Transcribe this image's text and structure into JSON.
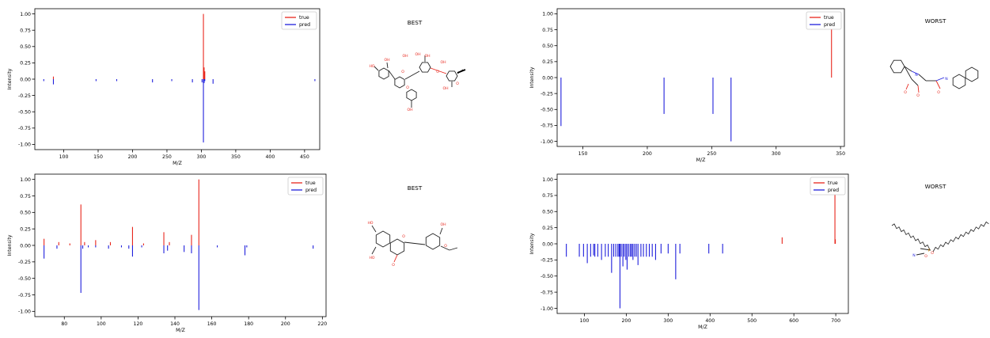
{
  "colors": {
    "true": "#e8261c",
    "pred": "#1f1fdc",
    "axis": "#000000",
    "mol_bond": "#222222",
    "mol_o": "#e8261c",
    "mol_n": "#1f1fdc"
  },
  "chart_data": [
    {
      "type": "bar",
      "subtype": "mirrored-spectrum",
      "title": "",
      "xlabel": "M/Z",
      "ylabel": "Intensity",
      "xlim": [
        58,
        472
      ],
      "ylim": [
        -1.08,
        1.08
      ],
      "xticks": [
        100,
        150,
        200,
        250,
        300,
        350,
        400,
        450
      ],
      "yticks": [
        1.0,
        0.75,
        0.5,
        0.25,
        0.0,
        -0.25,
        -0.5,
        -0.75,
        -1.0
      ],
      "ytick_labels": [
        "1.00",
        "0.75",
        "0.50",
        "0.25",
        "0.00",
        "-0.25",
        "-0.50",
        "-0.75",
        "-1.00"
      ],
      "legend": {
        "position": "top-right",
        "entries": [
          "true",
          "pred"
        ]
      },
      "series": [
        {
          "name": "true",
          "x": [
            85,
            303,
            304,
            305
          ],
          "values": [
            0.04,
            1.0,
            0.18,
            0.12
          ]
        },
        {
          "name": "pred",
          "x": [
            71,
            85,
            147,
            177,
            229,
            257,
            287,
            301,
            303,
            304,
            305,
            317,
            465
          ],
          "values": [
            -0.03,
            -0.08,
            -0.03,
            -0.03,
            -0.05,
            -0.03,
            -0.05,
            -0.05,
            -0.97,
            -0.06,
            -0.03,
            -0.07,
            -0.03
          ]
        }
      ],
      "side_label": "BEST"
    },
    {
      "type": "bar",
      "subtype": "mirrored-spectrum",
      "title": "",
      "xlabel": "M/Z",
      "ylabel": "Intensity",
      "xlim": [
        130,
        353
      ],
      "ylim": [
        -1.08,
        1.08
      ],
      "xticks": [
        150,
        200,
        250,
        300,
        350
      ],
      "yticks": [
        1.0,
        0.75,
        0.5,
        0.25,
        0.0,
        -0.25,
        -0.5,
        -0.75,
        -1.0
      ],
      "ytick_labels": [
        "1.00",
        "0.75",
        "0.50",
        "0.25",
        "0.00",
        "-0.25",
        "-0.50",
        "-0.75",
        "-1.00"
      ],
      "legend": {
        "position": "top-right",
        "entries": [
          "true",
          "pred"
        ]
      },
      "series": [
        {
          "name": "true",
          "x": [
            343
          ],
          "values": [
            1.0
          ]
        },
        {
          "name": "pred",
          "x": [
            133,
            213,
            251,
            265
          ],
          "values": [
            -0.76,
            -0.57,
            -0.57,
            -1.0
          ]
        }
      ],
      "side_label": "WORST"
    },
    {
      "type": "bar",
      "subtype": "mirrored-spectrum",
      "title": "",
      "xlabel": "M/Z",
      "ylabel": "Intensity",
      "xlim": [
        64,
        222
      ],
      "ylim": [
        -1.08,
        1.08
      ],
      "xticks": [
        80,
        100,
        120,
        140,
        160,
        180,
        200,
        220
      ],
      "yticks": [
        1.0,
        0.75,
        0.5,
        0.25,
        0.0,
        -0.25,
        -0.5,
        -0.75,
        -1.0
      ],
      "ytick_labels": [
        "1.00",
        "0.75",
        "0.50",
        "0.25",
        "0.00",
        "-0.25",
        "-0.50",
        "-0.75",
        "-1.00"
      ],
      "legend": {
        "position": "top-right",
        "entries": [
          "true",
          "pred"
        ]
      },
      "series": [
        {
          "name": "true",
          "x": [
            69,
            77,
            83,
            89,
            91,
            97,
            105,
            117,
            123,
            134,
            137,
            149,
            153
          ],
          "values": [
            0.1,
            0.05,
            0.03,
            0.62,
            0.05,
            0.08,
            0.05,
            0.28,
            0.03,
            0.2,
            0.05,
            0.16,
            1.0
          ]
        },
        {
          "name": "pred",
          "x": [
            69,
            76,
            89,
            90,
            93,
            97,
            104,
            111,
            115,
            117,
            122,
            134,
            136,
            145,
            149,
            153,
            163,
            178,
            179,
            215
          ],
          "values": [
            -0.2,
            -0.05,
            -0.72,
            -0.05,
            -0.03,
            -0.03,
            -0.05,
            -0.03,
            -0.05,
            -0.17,
            -0.03,
            -0.12,
            -0.08,
            -0.1,
            -0.12,
            -0.98,
            -0.03,
            -0.15,
            -0.03,
            -0.05
          ]
        }
      ],
      "side_label": "BEST"
    },
    {
      "type": "bar",
      "subtype": "mirrored-spectrum",
      "title": "",
      "xlabel": "M/Z",
      "ylabel": "Intensity",
      "xlim": [
        35,
        730
      ],
      "ylim": [
        -1.08,
        1.08
      ],
      "xticks": [
        100,
        200,
        300,
        400,
        500,
        600,
        700
      ],
      "yticks": [
        1.0,
        0.75,
        0.5,
        0.25,
        0.0,
        -0.25,
        -0.5,
        -0.75,
        -1.0
      ],
      "ytick_labels": [
        "1.00",
        "0.75",
        "0.50",
        "0.25",
        "0.00",
        "-0.25",
        "-0.50",
        "-0.75",
        "-1.00"
      ],
      "legend": {
        "position": "top-right",
        "entries": [
          "true",
          "pred"
        ]
      },
      "series": [
        {
          "name": "true",
          "x": [
            572,
            698,
            699
          ],
          "values": [
            0.1,
            1.0,
            0.07
          ]
        },
        {
          "name": "pred",
          "x": [
            57,
            88,
            98,
            107,
            115,
            122,
            125,
            132,
            141,
            150,
            157,
            165,
            170,
            175,
            180,
            183,
            185,
            188,
            192,
            195,
            199,
            202,
            206,
            210,
            213,
            216,
            220,
            224,
            228,
            235,
            241,
            248,
            255,
            262,
            270,
            283,
            300,
            318,
            328,
            397,
            430
          ],
          "values": [
            -0.2,
            -0.2,
            -0.2,
            -0.3,
            -0.2,
            -0.18,
            -0.2,
            -0.2,
            -0.25,
            -0.2,
            -0.2,
            -0.45,
            -0.2,
            -0.2,
            -0.2,
            -0.2,
            -1.0,
            -0.2,
            -0.35,
            -0.2,
            -0.25,
            -0.4,
            -0.2,
            -0.2,
            -0.2,
            -0.25,
            -0.2,
            -0.2,
            -0.33,
            -0.2,
            -0.2,
            -0.2,
            -0.2,
            -0.2,
            -0.25,
            -0.15,
            -0.15,
            -0.55,
            -0.15,
            -0.15,
            -0.15
          ]
        }
      ],
      "side_label": "WORST"
    }
  ],
  "molecules": [
    {
      "name": "flavonoid-glycoside",
      "atom_labels": [
        "HO",
        "OH",
        "O",
        "O",
        "OH",
        "OH",
        "OH",
        "OH",
        "OH",
        "O",
        "O",
        "OH"
      ]
    },
    {
      "name": "isatin-tetrahydroisoquinoline",
      "atom_labels": [
        "O",
        "O",
        "N",
        "O",
        "N"
      ]
    },
    {
      "name": "flavanone",
      "atom_labels": [
        "HO",
        "OH",
        "O",
        "O",
        "HO",
        "O"
      ]
    },
    {
      "name": "lipid",
      "atom_labels": [
        "N",
        "O",
        "O",
        "P"
      ]
    }
  ]
}
